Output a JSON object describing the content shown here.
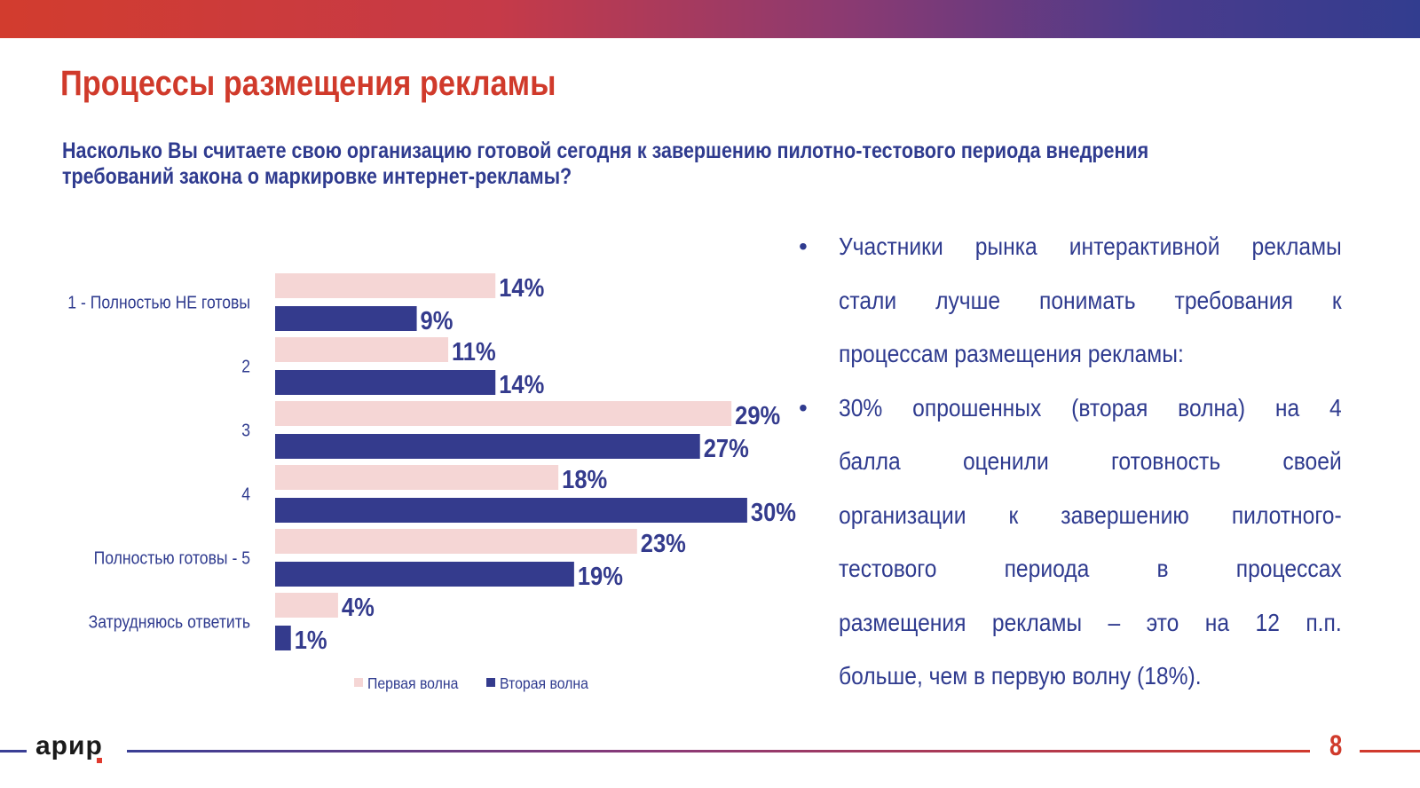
{
  "header": {
    "title": "Процессы размещения рекламы",
    "question_lines": [
      "Насколько Вы считаете свою организацию готовой сегодня к завершению пилотно-тестового периода внедрения",
      "требований закона о маркировке интернет-рекламы?"
    ]
  },
  "colors": {
    "first_wave": "#f5d6d5",
    "second_wave": "#343b8d",
    "title": "#d03a2b",
    "text": "#2f3b8f"
  },
  "chart_data": {
    "type": "bar",
    "orientation": "horizontal",
    "categories": [
      "1 - Полностью НЕ готовы",
      "2",
      "3",
      "4",
      "Полностью готовы - 5",
      "Затрудняюсь ответить"
    ],
    "series": [
      {
        "name": "Первая волна",
        "values": [
          14,
          11,
          29,
          18,
          23,
          4
        ],
        "labels": [
          "14%",
          "11%",
          "29%",
          "18%",
          "23%",
          "4%"
        ]
      },
      {
        "name": "Вторая волна",
        "values": [
          9,
          14,
          27,
          30,
          19,
          1
        ],
        "labels": [
          "9%",
          "14%",
          "27%",
          "30%",
          "19%",
          "1%"
        ]
      }
    ],
    "unit": "%",
    "xlim": [
      0,
      30
    ],
    "grid": false,
    "legend": "bottom"
  },
  "bullets": [
    {
      "lines": [
        "Участники рынка интерактивной рекламы",
        "стали лучше понимать требования к",
        "процессам размещения рекламы:"
      ]
    },
    {
      "lines": [
        "30% опрошенных (вторая волна) на 4",
        "балла оценили готовность своей",
        "организации к завершению пилотного-",
        "тестового периода в процессах",
        "размещения рекламы – это на 12 п.п.",
        "больше, чем в первую волну (18%)."
      ]
    }
  ],
  "footer": {
    "logo": "арир",
    "page_number": "8"
  }
}
